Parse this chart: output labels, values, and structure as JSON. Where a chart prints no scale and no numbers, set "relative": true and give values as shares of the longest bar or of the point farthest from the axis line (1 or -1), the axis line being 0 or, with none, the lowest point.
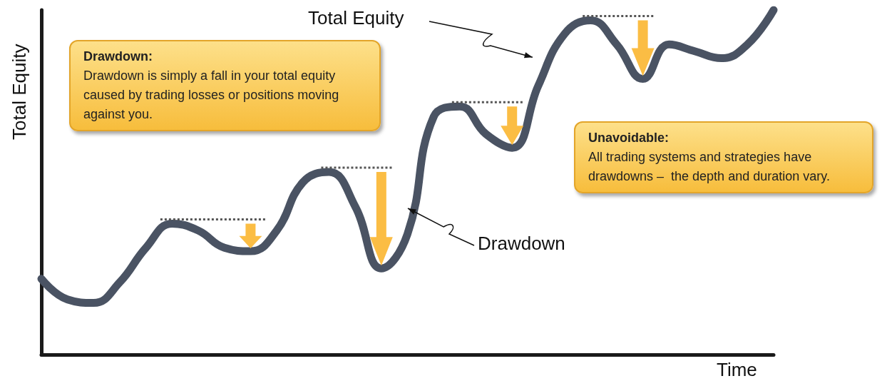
{
  "chart_data": {
    "type": "line",
    "relative": true,
    "line_style": "solid",
    "xlabel": "Time",
    "ylabel": "Total Equity",
    "categories": [
      null,
      null,
      null,
      null,
      null,
      null,
      null,
      null,
      null,
      null,
      null,
      null,
      null,
      null,
      null,
      null,
      null,
      null,
      null,
      null,
      null,
      null,
      null,
      null,
      null,
      null,
      null,
      null,
      null
    ],
    "series": [
      {
        "name": "Total Equity",
        "color": "#4a5363",
        "values": [
          0.22,
          0.16,
          0.15,
          0.21,
          0.31,
          0.38,
          0.36,
          0.31,
          0.3,
          0.36,
          0.5,
          0.53,
          0.43,
          0.25,
          0.35,
          0.69,
          0.72,
          0.64,
          0.6,
          0.78,
          0.93,
          0.97,
          0.9,
          0.8,
          0.9,
          0.88,
          0.86,
          0.9,
          1.0
        ]
      }
    ],
    "annotations": [
      "Drawdown:",
      "Drawdown is simply a fall in your total equity caused by trading losses or positions moving against you.",
      "Unavoidable:",
      "All trading systems and strategies have drawdowns –  the depth and duration vary.",
      "Drawdown"
    ]
  }
}
